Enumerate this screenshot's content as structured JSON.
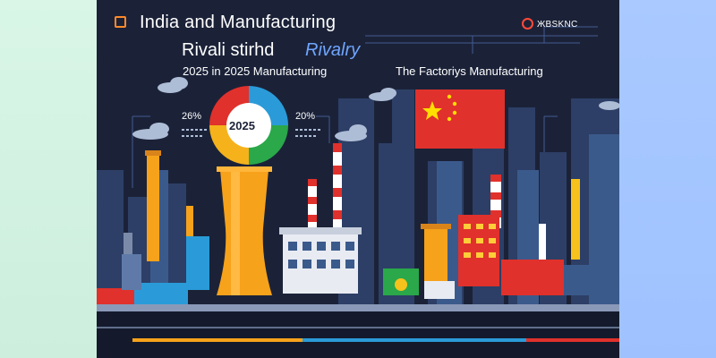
{
  "title": {
    "line1": "India   and Manufacturing",
    "line2_main": "Rivali stirhd",
    "line2_accent": "Rivalry"
  },
  "subtitles": {
    "left": "2025 in 2025 Manufacturing",
    "right": "The Factoriys Manufacturing"
  },
  "brand": {
    "text": "ЖBSKNC"
  },
  "stats": {
    "left_percent": "26%",
    "right_percent": "20%",
    "donut_year": "2025"
  },
  "colors": {
    "background": "#1b2238",
    "accent_blue": "#6fa6ff",
    "india_orange": "#f7a21b",
    "china_red": "#e0312c",
    "flag_star": "#ffde00"
  }
}
